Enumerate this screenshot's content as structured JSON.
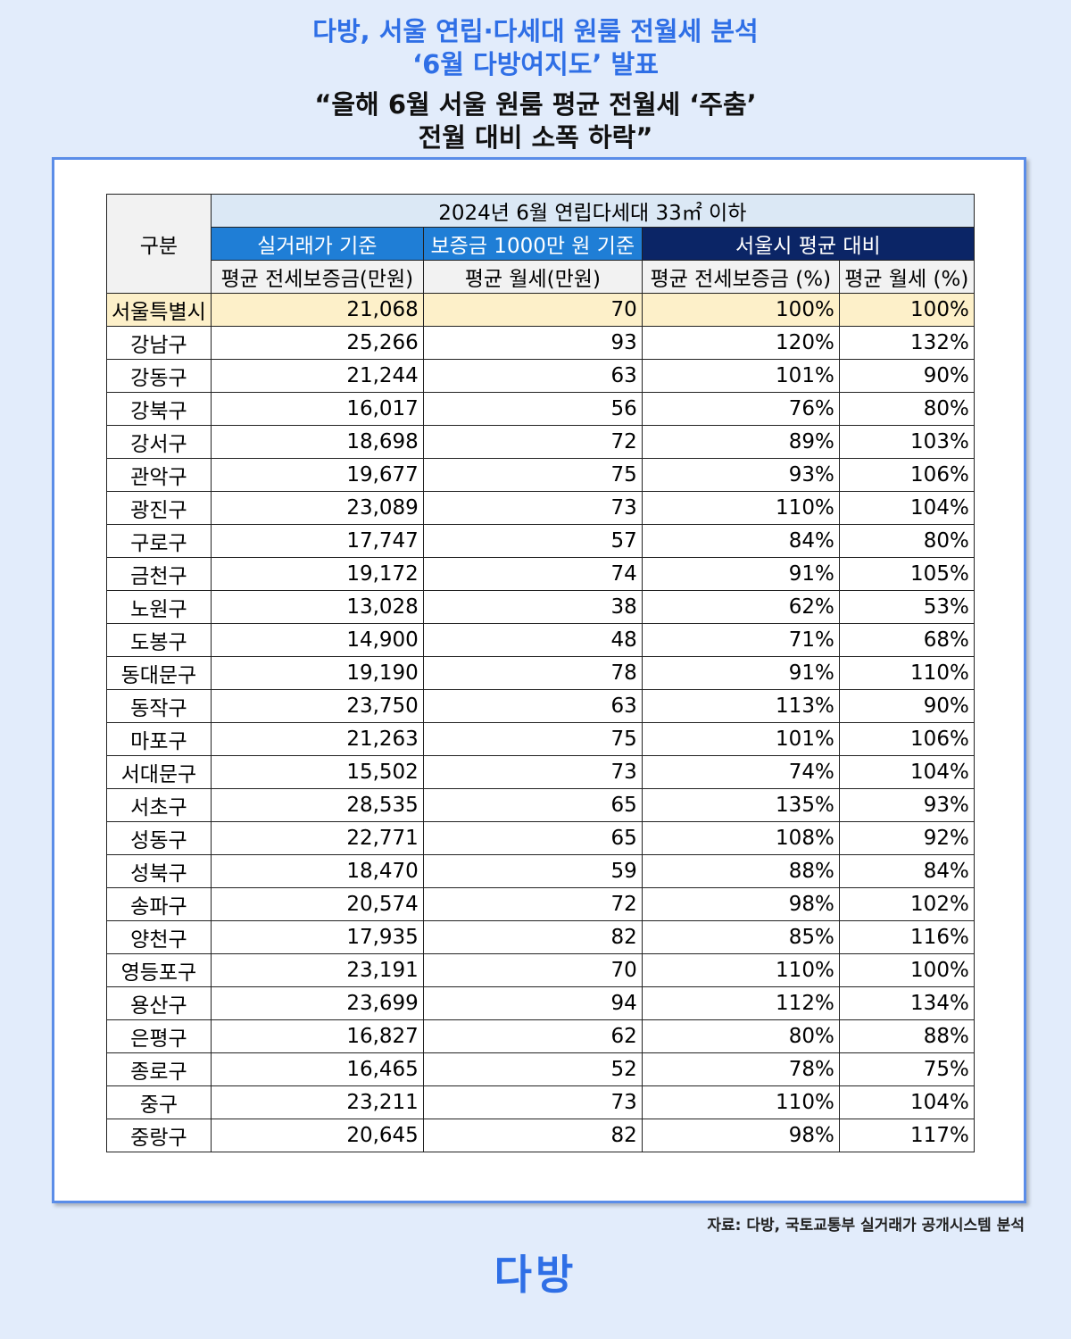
{
  "header": {
    "title_lines": [
      "다방, 서울 연립·다세대 원룸 전월세 분석",
      "‘6월 다방여지도’ 발표",
      "“올해 6월 서울 원룸 평균 전월세 ‘주춤’",
      "전월 대비 소폭 하락”"
    ]
  },
  "table": {
    "corner": "구분",
    "group": "2024년 6월 연립다세대 33㎡ 이하",
    "bands": [
      "실거래가 기준",
      "보증금 1000만 원 기준",
      "서울시 평균 대비"
    ],
    "columns": [
      "평균 전세보증금(만원)",
      "평균 월세(만원)",
      "평균 전세보증금 (%)",
      "평균 월세 (%)"
    ],
    "rows": [
      [
        "서울특별시",
        "21,068",
        "70",
        "100%",
        "100%"
      ],
      [
        "강남구",
        "25,266",
        "93",
        "120%",
        "132%"
      ],
      [
        "강동구",
        "21,244",
        "63",
        "101%",
        "90%"
      ],
      [
        "강북구",
        "16,017",
        "56",
        "76%",
        "80%"
      ],
      [
        "강서구",
        "18,698",
        "72",
        "89%",
        "103%"
      ],
      [
        "관악구",
        "19,677",
        "75",
        "93%",
        "106%"
      ],
      [
        "광진구",
        "23,089",
        "73",
        "110%",
        "104%"
      ],
      [
        "구로구",
        "17,747",
        "57",
        "84%",
        "80%"
      ],
      [
        "금천구",
        "19,172",
        "74",
        "91%",
        "105%"
      ],
      [
        "노원구",
        "13,028",
        "38",
        "62%",
        "53%"
      ],
      [
        "도봉구",
        "14,900",
        "48",
        "71%",
        "68%"
      ],
      [
        "동대문구",
        "19,190",
        "78",
        "91%",
        "110%"
      ],
      [
        "동작구",
        "23,750",
        "63",
        "113%",
        "90%"
      ],
      [
        "마포구",
        "21,263",
        "75",
        "101%",
        "106%"
      ],
      [
        "서대문구",
        "15,502",
        "73",
        "74%",
        "104%"
      ],
      [
        "서초구",
        "28,535",
        "65",
        "135%",
        "93%"
      ],
      [
        "성동구",
        "22,771",
        "65",
        "108%",
        "92%"
      ],
      [
        "성북구",
        "18,470",
        "59",
        "88%",
        "84%"
      ],
      [
        "송파구",
        "20,574",
        "72",
        "98%",
        "102%"
      ],
      [
        "양천구",
        "17,935",
        "82",
        "85%",
        "116%"
      ],
      [
        "영등포구",
        "23,191",
        "70",
        "110%",
        "100%"
      ],
      [
        "용산구",
        "23,699",
        "94",
        "112%",
        "134%"
      ],
      [
        "은평구",
        "16,827",
        "62",
        "80%",
        "88%"
      ],
      [
        "종로구",
        "16,465",
        "52",
        "78%",
        "75%"
      ],
      [
        "중구",
        "23,211",
        "73",
        "110%",
        "104%"
      ],
      [
        "중랑구",
        "20,645",
        "82",
        "98%",
        "117%"
      ]
    ]
  },
  "footer": {
    "source": "자료: 다방, 국토교통부 실거래가 공개시스템 분석",
    "logo": "다방"
  }
}
